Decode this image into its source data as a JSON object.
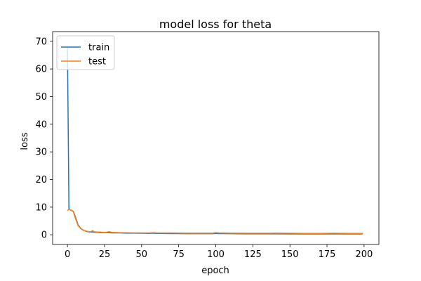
{
  "chart_data": {
    "type": "line",
    "title": "model loss for theta",
    "xlabel": "epoch",
    "ylabel": "loss",
    "xlim": [
      -10,
      210
    ],
    "ylim": [
      -3.5,
      73.5
    ],
    "xticks": [
      0,
      25,
      50,
      75,
      100,
      125,
      150,
      175,
      200
    ],
    "yticks": [
      0,
      10,
      20,
      30,
      40,
      50,
      60,
      70
    ],
    "grid": false,
    "legend_position": "top-left",
    "series": [
      {
        "name": "train",
        "color": "#1f77b4",
        "points": [
          [
            0,
            68
          ],
          [
            1,
            9.5
          ],
          [
            2,
            9.0
          ],
          [
            3,
            8.7
          ],
          [
            4,
            8.5
          ],
          [
            5,
            7.0
          ],
          [
            6,
            5.5
          ],
          [
            7,
            3.8
          ],
          [
            8,
            3.0
          ],
          [
            9,
            2.3
          ],
          [
            10,
            1.9
          ],
          [
            11,
            1.6
          ],
          [
            12,
            1.4
          ],
          [
            13,
            1.2
          ],
          [
            14,
            1.1
          ],
          [
            15,
            1.0
          ],
          [
            16,
            1.0
          ],
          [
            17,
            1.0
          ],
          [
            18,
            0.9
          ],
          [
            20,
            0.9
          ],
          [
            22,
            0.8
          ],
          [
            24,
            0.8
          ],
          [
            26,
            0.8
          ],
          [
            28,
            0.75
          ],
          [
            30,
            0.7
          ],
          [
            35,
            0.7
          ],
          [
            40,
            0.6
          ],
          [
            45,
            0.6
          ],
          [
            50,
            0.55
          ],
          [
            55,
            0.5
          ],
          [
            58,
            0.6
          ],
          [
            60,
            0.5
          ],
          [
            70,
            0.45
          ],
          [
            80,
            0.4
          ],
          [
            90,
            0.4
          ],
          [
            98,
            0.4
          ],
          [
            100,
            0.5
          ],
          [
            102,
            0.45
          ],
          [
            110,
            0.4
          ],
          [
            120,
            0.35
          ],
          [
            130,
            0.35
          ],
          [
            140,
            0.35
          ],
          [
            150,
            0.3
          ],
          [
            160,
            0.3
          ],
          [
            170,
            0.3
          ],
          [
            180,
            0.3
          ],
          [
            190,
            0.3
          ],
          [
            199,
            0.3
          ]
        ]
      },
      {
        "name": "test",
        "color": "#ff7f0e",
        "points": [
          [
            0,
            8.7
          ],
          [
            1,
            9.3
          ],
          [
            2,
            9.0
          ],
          [
            3,
            8.8
          ],
          [
            4,
            8.3
          ],
          [
            5,
            6.5
          ],
          [
            6,
            5.0
          ],
          [
            7,
            3.5
          ],
          [
            8,
            2.8
          ],
          [
            9,
            2.2
          ],
          [
            10,
            1.8
          ],
          [
            11,
            1.6
          ],
          [
            12,
            1.4
          ],
          [
            13,
            1.3
          ],
          [
            14,
            1.2
          ],
          [
            15,
            1.1
          ],
          [
            16,
            1.2
          ],
          [
            17,
            1.5
          ],
          [
            18,
            1.1
          ],
          [
            20,
            1.0
          ],
          [
            22,
            1.0
          ],
          [
            24,
            0.9
          ],
          [
            26,
            0.9
          ],
          [
            28,
            1.1
          ],
          [
            30,
            0.9
          ],
          [
            35,
            0.8
          ],
          [
            40,
            0.75
          ],
          [
            45,
            0.7
          ],
          [
            50,
            0.7
          ],
          [
            55,
            0.65
          ],
          [
            58,
            0.8
          ],
          [
            60,
            0.7
          ],
          [
            70,
            0.65
          ],
          [
            80,
            0.6
          ],
          [
            90,
            0.6
          ],
          [
            98,
            0.6
          ],
          [
            100,
            0.8
          ],
          [
            102,
            0.7
          ],
          [
            110,
            0.6
          ],
          [
            120,
            0.55
          ],
          [
            130,
            0.55
          ],
          [
            140,
            0.6
          ],
          [
            150,
            0.55
          ],
          [
            160,
            0.5
          ],
          [
            170,
            0.5
          ],
          [
            180,
            0.55
          ],
          [
            190,
            0.5
          ],
          [
            199,
            0.5
          ]
        ]
      }
    ]
  }
}
